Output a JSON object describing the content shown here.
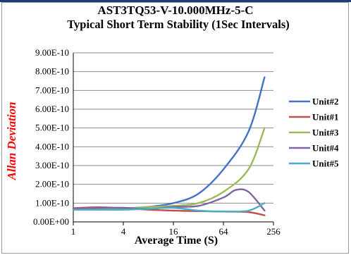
{
  "chart_data": {
    "type": "line",
    "title": "AST3TQ53-V-10.000MHz-5-C",
    "subtitle": "Typical Short Term Stability (1Sec Intervals)",
    "xlabel": "Average Time (S)",
    "ylabel": "Allan Deviation",
    "x_scale": "log2",
    "xlim": [
      1,
      256
    ],
    "x_ticks": [
      1,
      4,
      16,
      64,
      256
    ],
    "x_tick_labels": [
      "1",
      "4",
      "16",
      "64",
      "256"
    ],
    "ylim": [
      0,
      9e-10
    ],
    "y_ticks": [
      0,
      1e-10,
      2e-10,
      3e-10,
      4e-10,
      5e-10,
      6e-10,
      7e-10,
      8e-10,
      9e-10
    ],
    "y_tick_labels": [
      "0.00E+00",
      "1.00E-10",
      "2.00E-10",
      "3.00E-10",
      "4.00E-10",
      "5.00E-10",
      "6.00E-10",
      "7.00E-10",
      "8.00E-10",
      "9.00E-10"
    ],
    "grid": "horizontal",
    "legend_position": "right",
    "series": [
      {
        "name": "Unit#2",
        "color": "#4472C4",
        "x": [
          1,
          2,
          4,
          8,
          16,
          32,
          64,
          128,
          200
        ],
        "y": [
          6.8e-11,
          7e-11,
          7e-11,
          8e-11,
          1e-10,
          1.5e-10,
          2.8e-10,
          4.8e-10,
          7.7e-10
        ]
      },
      {
        "name": "Unit#1",
        "color": "#C0504D",
        "x": [
          1,
          2,
          4,
          8,
          16,
          32,
          64,
          128,
          200
        ],
        "y": [
          7.3e-11,
          7.8e-11,
          7.2e-11,
          6.5e-11,
          6e-11,
          5.7e-11,
          5.5e-11,
          5.2e-11,
          3.5e-11
        ]
      },
      {
        "name": "Unit#3",
        "color": "#9BBB59",
        "x": [
          1,
          2,
          4,
          8,
          16,
          32,
          64,
          128,
          200
        ],
        "y": [
          6.8e-11,
          7e-11,
          7.2e-11,
          8e-11,
          8.5e-11,
          1e-10,
          1.6e-10,
          2.8e-10,
          5e-10
        ]
      },
      {
        "name": "Unit#4",
        "color": "#8064A2",
        "x": [
          1,
          2,
          4,
          8,
          16,
          32,
          64,
          90,
          128,
          200
        ],
        "y": [
          7e-11,
          7.5e-11,
          7.5e-11,
          7e-11,
          8e-11,
          8.5e-11,
          1.3e-10,
          1.7e-10,
          1.6e-10,
          6e-11
        ]
      },
      {
        "name": "Unit#5",
        "color": "#4BACC6",
        "x": [
          1,
          2,
          4,
          8,
          16,
          32,
          64,
          128,
          200
        ],
        "y": [
          6.5e-11,
          6.5e-11,
          6.5e-11,
          7e-11,
          7.5e-11,
          6e-11,
          5.5e-11,
          6e-11,
          1e-10
        ]
      }
    ]
  },
  "colors": {
    "top_rule": "#1F3D7A",
    "ylabel": "#FF0000",
    "grid": "#8C8C8C",
    "axis": "#000000"
  }
}
